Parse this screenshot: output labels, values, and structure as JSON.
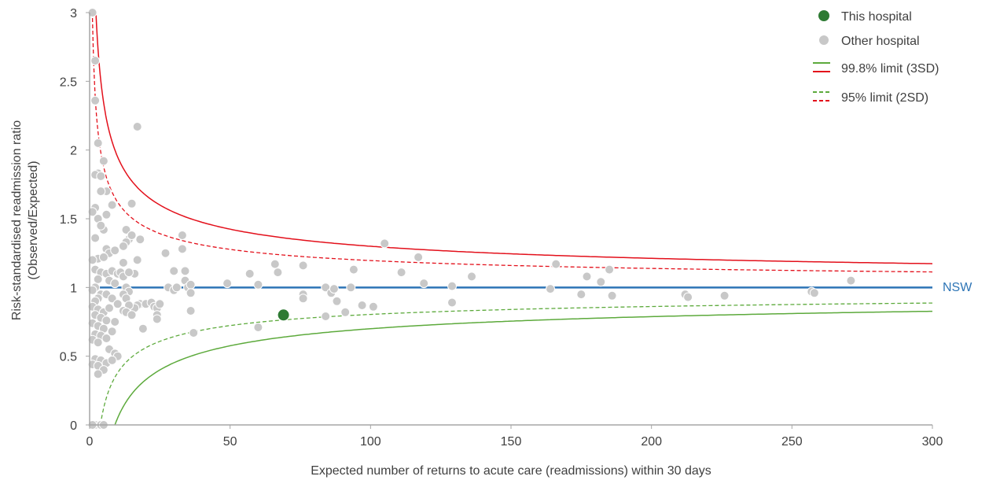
{
  "chart_data": {
    "type": "scatter",
    "xlabel": "Expected number of returns to acute care (readmissions) within 30 days",
    "ylabel_line1": "Risk-standardised readmission ratio",
    "ylabel_line2": "(Observed/Expected)",
    "xlim": [
      0,
      300
    ],
    "ylim": [
      0,
      3
    ],
    "x_ticks": [
      "0",
      "50",
      "100",
      "150",
      "200",
      "250",
      "300"
    ],
    "y_ticks": [
      "0",
      "0.5",
      "1",
      "1.5",
      "2",
      "2.5",
      "3"
    ],
    "reference_line": {
      "label": "NSW",
      "y": 1,
      "color": "#2e75b6"
    },
    "legend": {
      "position": "top-right",
      "this_hospital": "This hospital",
      "other_hospital": "Other hospital",
      "limit_3sd": "99.8% limit (3SD)",
      "limit_2sd": "95% limit (2SD)"
    },
    "colors": {
      "this_hospital": "#2d7a32",
      "other_hospital": "#c8c8c8",
      "upper_limit": "#e3101b",
      "lower_limit": "#5daa3c",
      "nsw": "#2e75b6",
      "axis": "#a6a6a6"
    },
    "series": [
      {
        "name": "This hospital",
        "points": [
          [
            69,
            0.8
          ]
        ]
      },
      {
        "name": "Other hospital",
        "points": [
          [
            1,
            3.0
          ],
          [
            2,
            2.65
          ],
          [
            2,
            2.36
          ],
          [
            3,
            2.05
          ],
          [
            5,
            1.92
          ],
          [
            3,
            1.83
          ],
          [
            2,
            1.82
          ],
          [
            4,
            1.81
          ],
          [
            6,
            1.7
          ],
          [
            4,
            1.7
          ],
          [
            2,
            1.58
          ],
          [
            1,
            1.55
          ],
          [
            6,
            1.53
          ],
          [
            3,
            1.5
          ],
          [
            5,
            1.42
          ],
          [
            8,
            1.6
          ],
          [
            4,
            1.45
          ],
          [
            2,
            1.36
          ],
          [
            6,
            1.28
          ],
          [
            7,
            1.25
          ],
          [
            9,
            1.27
          ],
          [
            3,
            1.21
          ],
          [
            5,
            1.22
          ],
          [
            1,
            1.2
          ],
          [
            2,
            1.13
          ],
          [
            4,
            1.11
          ],
          [
            6,
            1.1
          ],
          [
            3,
            1.06
          ],
          [
            7,
            1.05
          ],
          [
            8,
            1.12
          ],
          [
            10,
            1.1
          ],
          [
            11,
            1.11
          ],
          [
            12,
            1.08
          ],
          [
            9,
            1.03
          ],
          [
            2,
            1.0
          ],
          [
            1,
            0.98
          ],
          [
            4,
            0.95
          ],
          [
            6,
            0.95
          ],
          [
            3,
            0.92
          ],
          [
            2,
            0.9
          ],
          [
            8,
            0.92
          ],
          [
            10,
            0.88
          ],
          [
            1,
            0.86
          ],
          [
            3,
            0.84
          ],
          [
            5,
            0.82
          ],
          [
            7,
            0.85
          ],
          [
            2,
            0.8
          ],
          [
            4,
            0.78
          ],
          [
            6,
            0.76
          ],
          [
            9,
            0.75
          ],
          [
            1,
            0.74
          ],
          [
            3,
            0.72
          ],
          [
            5,
            0.7
          ],
          [
            8,
            0.68
          ],
          [
            2,
            0.66
          ],
          [
            4,
            0.65
          ],
          [
            6,
            0.63
          ],
          [
            1,
            0.62
          ],
          [
            3,
            0.6
          ],
          [
            7,
            0.55
          ],
          [
            9,
            0.52
          ],
          [
            10,
            0.5
          ],
          [
            2,
            0.48
          ],
          [
            4,
            0.47
          ],
          [
            6,
            0.45
          ],
          [
            1,
            0.44
          ],
          [
            3,
            0.43
          ],
          [
            5,
            0.4
          ],
          [
            3,
            0.37
          ],
          [
            8,
            0.47
          ],
          [
            2,
            0.0
          ],
          [
            4,
            0.0
          ],
          [
            5,
            0.0
          ],
          [
            1,
            0.0
          ],
          [
            12,
            1.18
          ],
          [
            13,
            1.42
          ],
          [
            14,
            1.35
          ],
          [
            15,
            1.38
          ],
          [
            13,
            1.33
          ],
          [
            12,
            1.3
          ],
          [
            15,
            1.61
          ],
          [
            17,
            2.17
          ],
          [
            18,
            1.35
          ],
          [
            17,
            1.2
          ],
          [
            16,
            1.1
          ],
          [
            14,
            1.11
          ],
          [
            13,
            1.0
          ],
          [
            14,
            0.97
          ],
          [
            12,
            0.95
          ],
          [
            13,
            0.92
          ],
          [
            15,
            0.86
          ],
          [
            18,
            0.88
          ],
          [
            17,
            0.87
          ],
          [
            16,
            0.85
          ],
          [
            14,
            0.87
          ],
          [
            12,
            0.83
          ],
          [
            13,
            0.82
          ],
          [
            15,
            0.8
          ],
          [
            19,
            0.7
          ],
          [
            20,
            0.88
          ],
          [
            22,
            0.89
          ],
          [
            23,
            0.86
          ],
          [
            24,
            0.85
          ],
          [
            25,
            0.88
          ],
          [
            24,
            0.8
          ],
          [
            24,
            0.77
          ],
          [
            27,
            1.25
          ],
          [
            28,
            1.0
          ],
          [
            30,
            1.12
          ],
          [
            30,
            0.98
          ],
          [
            31,
            1.0
          ],
          [
            33,
            1.38
          ],
          [
            33,
            1.28
          ],
          [
            34,
            1.12
          ],
          [
            34,
            1.05
          ],
          [
            35,
            1.0
          ],
          [
            36,
            1.02
          ],
          [
            36,
            0.96
          ],
          [
            36,
            0.83
          ],
          [
            37,
            0.67
          ],
          [
            49,
            1.03
          ],
          [
            57,
            1.1
          ],
          [
            60,
            1.02
          ],
          [
            60,
            0.71
          ],
          [
            66,
            1.17
          ],
          [
            67,
            1.11
          ],
          [
            76,
            1.16
          ],
          [
            76,
            0.95
          ],
          [
            76,
            0.92
          ],
          [
            84,
            1.0
          ],
          [
            84,
            0.79
          ],
          [
            86,
            0.96
          ],
          [
            87,
            0.99
          ],
          [
            88,
            0.9
          ],
          [
            91,
            0.82
          ],
          [
            93,
            1.0
          ],
          [
            94,
            1.13
          ],
          [
            97,
            0.87
          ],
          [
            101,
            0.86
          ],
          [
            105,
            1.32
          ],
          [
            111,
            1.11
          ],
          [
            117,
            1.22
          ],
          [
            119,
            1.03
          ],
          [
            129,
            1.01
          ],
          [
            129,
            0.89
          ],
          [
            136,
            1.08
          ],
          [
            164,
            0.99
          ],
          [
            166,
            1.17
          ],
          [
            175,
            0.95
          ],
          [
            177,
            1.08
          ],
          [
            182,
            1.04
          ],
          [
            185,
            1.13
          ],
          [
            186,
            0.94
          ],
          [
            212,
            0.95
          ],
          [
            213,
            0.93
          ],
          [
            226,
            0.94
          ],
          [
            257,
            0.97
          ],
          [
            258,
            0.96
          ],
          [
            271,
            1.05
          ]
        ]
      }
    ]
  }
}
